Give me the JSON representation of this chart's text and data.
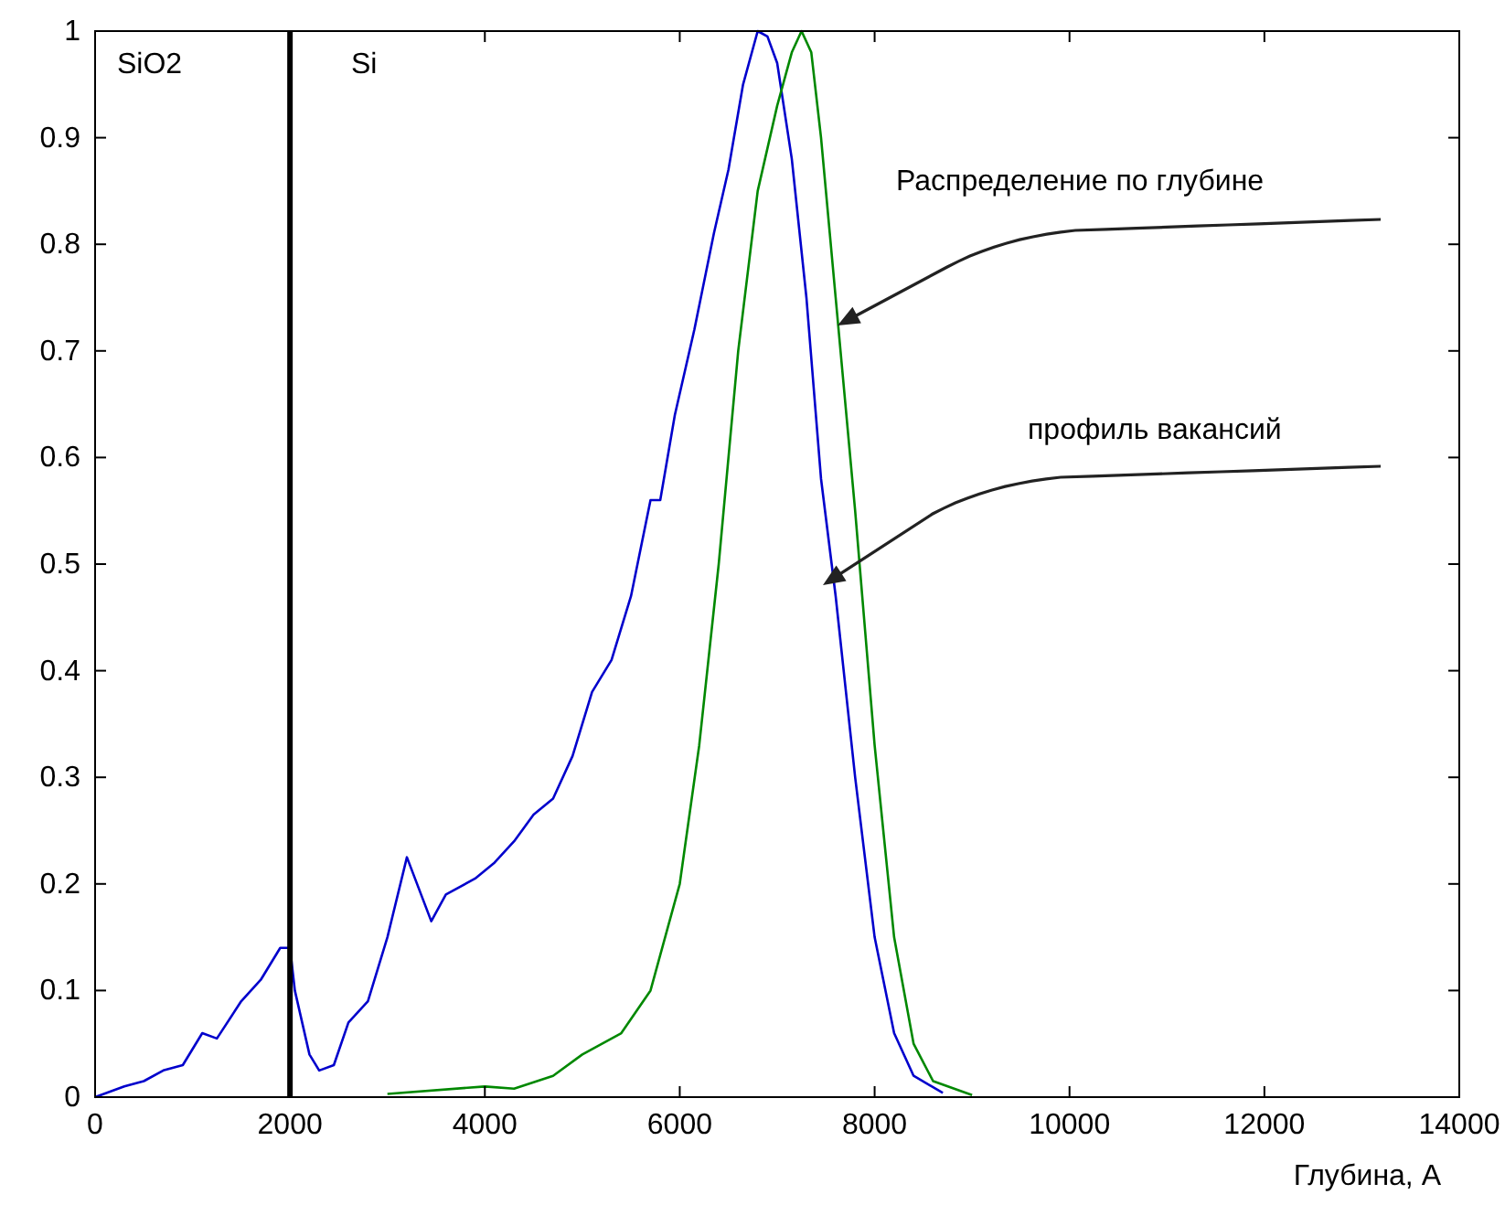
{
  "chart_data": {
    "type": "line",
    "xlabel": "Глубина, А",
    "xlim": [
      0,
      14000
    ],
    "xticks": [
      0,
      2000,
      4000,
      6000,
      8000,
      10000,
      12000,
      14000
    ],
    "ylim": [
      0,
      1
    ],
    "yticks": [
      0,
      0.1,
      0.2,
      0.3,
      0.4,
      0.5,
      0.6,
      0.7,
      0.8,
      0.9,
      1
    ],
    "grid": false,
    "line_style": "solid",
    "marker": "none",
    "series": [
      {
        "color": "#0000cc",
        "x": [
          0,
          300,
          500,
          700,
          900,
          1100,
          1250,
          1500,
          1700,
          1900,
          2000,
          2050,
          2200,
          2300,
          2450,
          2600,
          2800,
          3000,
          3200,
          3450,
          3600,
          3900,
          4100,
          4300,
          4500,
          4700,
          4900,
          5100,
          5300,
          5500,
          5700,
          5800,
          5950,
          6150,
          6350,
          6500,
          6650,
          6800,
          6900,
          7000,
          7150,
          7300,
          7450,
          7600,
          7800,
          8000,
          8200,
          8400,
          8700
        ],
        "values": [
          0,
          0.01,
          0.015,
          0.025,
          0.03,
          0.06,
          0.055,
          0.09,
          0.11,
          0.14,
          0.14,
          0.1,
          0.04,
          0.025,
          0.03,
          0.07,
          0.09,
          0.15,
          0.225,
          0.165,
          0.19,
          0.205,
          0.22,
          0.24,
          0.265,
          0.28,
          0.32,
          0.38,
          0.41,
          0.47,
          0.56,
          0.56,
          0.64,
          0.72,
          0.81,
          0.87,
          0.95,
          1,
          0.995,
          0.97,
          0.88,
          0.75,
          0.58,
          0.47,
          0.3,
          0.15,
          0.06,
          0.02,
          0.004
        ]
      },
      {
        "color": "#008800",
        "x": [
          3000,
          4000,
          4300,
          4700,
          5000,
          5400,
          5700,
          6000,
          6200,
          6400,
          6600,
          6800,
          7000,
          7150,
          7250,
          7350,
          7450,
          7600,
          7800,
          8000,
          8200,
          8400,
          8600,
          9000
        ],
        "values": [
          0.003,
          0.01,
          0.008,
          0.02,
          0.04,
          0.06,
          0.1,
          0.2,
          0.33,
          0.5,
          0.7,
          0.85,
          0.93,
          0.98,
          1,
          0.98,
          0.9,
          0.75,
          0.55,
          0.33,
          0.15,
          0.05,
          0.015,
          0.002
        ]
      }
    ],
    "ref_lines": [
      {
        "axis": "x",
        "value": 2000,
        "color": "#000000"
      }
    ],
    "annotations": [
      "SiO2",
      "Si",
      "Распределение по глубине",
      "профиль вакансий"
    ]
  }
}
